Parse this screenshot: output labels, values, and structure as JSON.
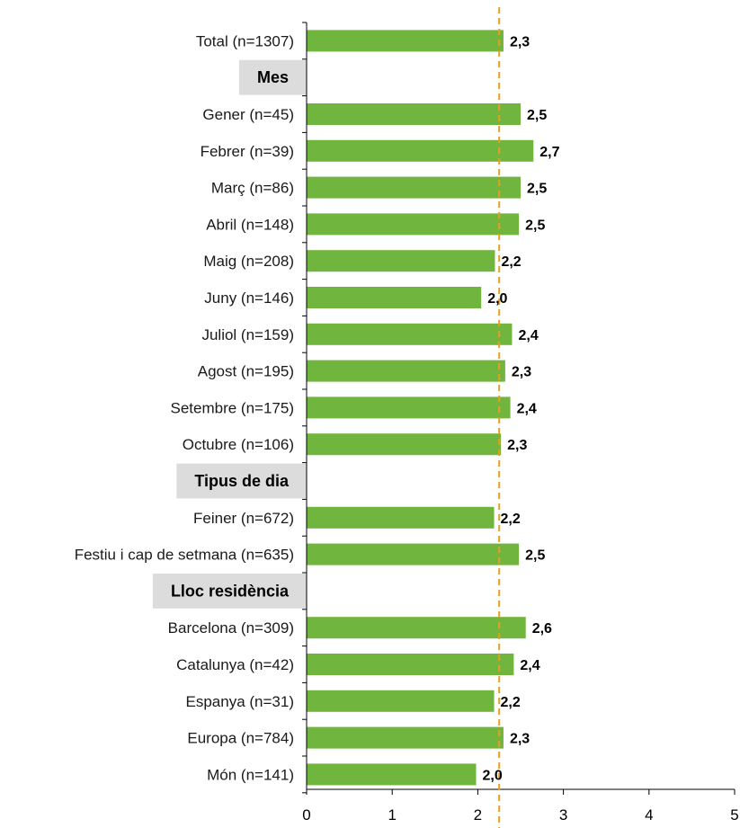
{
  "chart_data": {
    "type": "bar",
    "orientation": "horizontal",
    "xlim": [
      0,
      5
    ],
    "x_ticks": [
      "0",
      "1",
      "2",
      "3",
      "4",
      "5"
    ],
    "reference_line": 2.25,
    "grid": false,
    "colors": {
      "bar": "#70b53e",
      "reference_line": "#e5a020",
      "section_bg": "#dcdcdc",
      "axis": "#000000"
    },
    "rows": [
      {
        "kind": "bar",
        "label": "Total (n=1307)",
        "value": 2.3,
        "value_label": "2,3"
      },
      {
        "kind": "section",
        "label": "Mes"
      },
      {
        "kind": "bar",
        "label": "Gener (n=45)",
        "value": 2.5,
        "value_label": "2,5"
      },
      {
        "kind": "bar",
        "label": "Febrer (n=39)",
        "value": 2.65,
        "value_label": "2,7"
      },
      {
        "kind": "bar",
        "label": "Març (n=86)",
        "value": 2.5,
        "value_label": "2,5"
      },
      {
        "kind": "bar",
        "label": "Abril (n=148)",
        "value": 2.48,
        "value_label": "2,5"
      },
      {
        "kind": "bar",
        "label": "Maig (n=208)",
        "value": 2.2,
        "value_label": "2,2"
      },
      {
        "kind": "bar",
        "label": "Juny (n=146)",
        "value": 2.04,
        "value_label": "2,0"
      },
      {
        "kind": "bar",
        "label": "Juliol (n=159)",
        "value": 2.4,
        "value_label": "2,4"
      },
      {
        "kind": "bar",
        "label": "Agost (n=195)",
        "value": 2.32,
        "value_label": "2,3"
      },
      {
        "kind": "bar",
        "label": "Setembre (n=175)",
        "value": 2.38,
        "value_label": "2,4"
      },
      {
        "kind": "bar",
        "label": "Octubre (n=106)",
        "value": 2.27,
        "value_label": "2,3"
      },
      {
        "kind": "section",
        "label": "Tipus de dia"
      },
      {
        "kind": "bar",
        "label": "Feiner (n=672)",
        "value": 2.19,
        "value_label": "2,2"
      },
      {
        "kind": "bar",
        "label": "Festiu i cap de setmana (n=635)",
        "value": 2.48,
        "value_label": "2,5"
      },
      {
        "kind": "section",
        "label": "Lloc residència"
      },
      {
        "kind": "bar",
        "label": "Barcelona (n=309)",
        "value": 2.56,
        "value_label": "2,6"
      },
      {
        "kind": "bar",
        "label": "Catalunya (n=42)",
        "value": 2.42,
        "value_label": "2,4"
      },
      {
        "kind": "bar",
        "label": "Espanya (n=31)",
        "value": 2.19,
        "value_label": "2,2"
      },
      {
        "kind": "bar",
        "label": "Europa (n=784)",
        "value": 2.3,
        "value_label": "2,3"
      },
      {
        "kind": "bar",
        "label": "Món (n=141)",
        "value": 1.98,
        "value_label": "2,0"
      }
    ]
  }
}
